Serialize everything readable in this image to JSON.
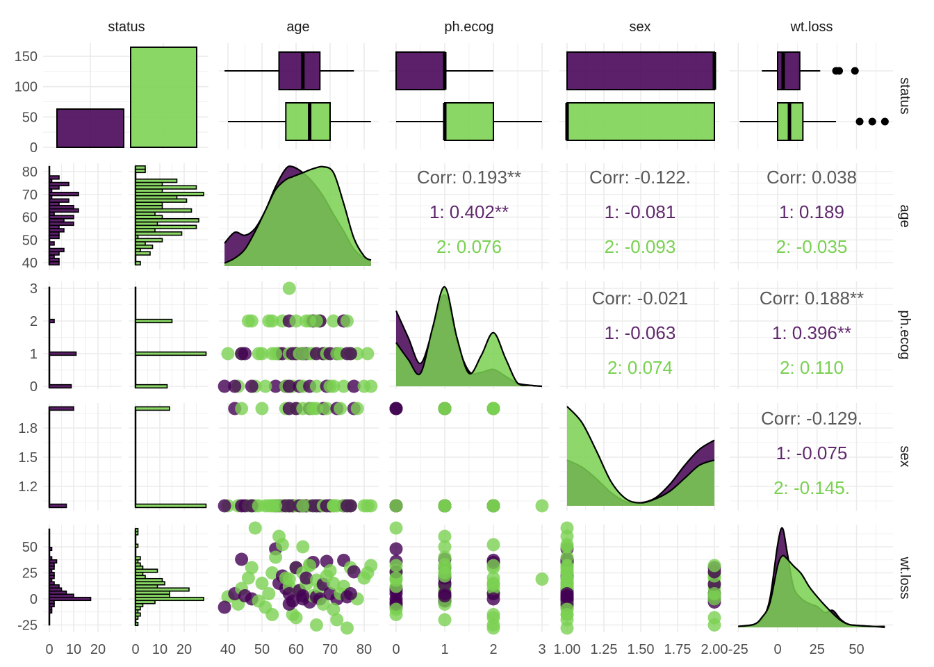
{
  "colors": {
    "group_1": "#440154",
    "group_2": "#7AD151",
    "corr_text": "#595959",
    "tick_text": "#4D4D4D",
    "grid": "#EBEBEB"
  },
  "strips": {
    "columns": [
      "status",
      "age",
      "ph.ecog",
      "sex",
      "wt.loss"
    ],
    "rows": [
      "status",
      "age",
      "ph.ecog",
      "sex",
      "wt.loss"
    ]
  },
  "chart_data": {
    "type": "pairs",
    "variables": [
      "status",
      "age",
      "ph.ecog",
      "sex",
      "wt.loss"
    ],
    "groups": [
      "1",
      "2"
    ],
    "grid": true,
    "axes": {
      "status_count": {
        "ticks": [
          0,
          50,
          100,
          150
        ],
        "labels": [
          "0",
          "50",
          "100",
          "150"
        ]
      },
      "hist_count": {
        "ticks": [
          0,
          10,
          20
        ],
        "labels": [
          "0",
          "10",
          "20"
        ]
      },
      "age": {
        "ticks": [
          40,
          50,
          60,
          70,
          80
        ],
        "labels": [
          "40",
          "50",
          "60",
          "70",
          "80"
        ]
      },
      "ph_ecog": {
        "ticks": [
          0,
          1,
          2,
          3
        ],
        "labels": [
          "0",
          "1",
          "2",
          "3"
        ]
      },
      "sex": {
        "ticks": [
          1,
          1.25,
          1.5,
          1.75,
          2
        ],
        "labels": [
          "1.00",
          "1.25",
          "1.50",
          "1.75",
          "2.00"
        ],
        "y_ticks": [
          1.2,
          1.5,
          1.8
        ],
        "y_labels": [
          "1.2",
          "1.5",
          "1.8"
        ]
      },
      "wt_loss": {
        "ticks": [
          -25,
          0,
          25,
          50
        ],
        "labels": [
          "-25",
          "0",
          "25",
          "50"
        ]
      }
    },
    "status_counts": {
      "1": 63,
      "2": 165
    },
    "boxplots": {
      "age": {
        "1": {
          "min": 39,
          "q1": 55,
          "median": 62,
          "q3": 67,
          "max": 77,
          "outliers": []
        },
        "2": {
          "min": 40,
          "q1": 57,
          "median": 64,
          "q3": 70,
          "max": 82,
          "outliers": []
        }
      },
      "ph_ecog": {
        "1": {
          "min": 0,
          "q1": 0,
          "median": 1,
          "q3": 1,
          "max": 2,
          "outliers": []
        },
        "2": {
          "min": 0,
          "q1": 1,
          "median": 1,
          "q3": 2,
          "max": 3,
          "outliers": []
        }
      },
      "sex": {
        "1": {
          "min": 1,
          "q1": 1,
          "median": 2,
          "q3": 2,
          "max": 2,
          "outliers": []
        },
        "2": {
          "min": 1,
          "q1": 1,
          "median": 1,
          "q3": 2,
          "max": 2,
          "outliers": []
        }
      },
      "wt_loss": {
        "1": {
          "min": -10,
          "q1": 0,
          "median": 3.5,
          "q3": 14,
          "max": 27,
          "outliers": [
            37,
            39,
            49
          ]
        },
        "2": {
          "min": -24,
          "q1": 0,
          "median": 7.5,
          "q3": 16,
          "max": 37,
          "outliers": [
            52,
            60,
            68
          ]
        }
      }
    },
    "histograms": {
      "age": {
        "bin_start": 39,
        "bin_width": 1.45,
        "counts": {
          "1": [
            4,
            4,
            2,
            4,
            6,
            0,
            2,
            0,
            4,
            4,
            6,
            4,
            10,
            6,
            10,
            2,
            12,
            10,
            4,
            8,
            1,
            12,
            1,
            4,
            8,
            1,
            4,
            0,
            0,
            0
          ],
          "2": [
            2,
            0,
            0,
            6,
            2,
            7,
            4,
            11,
            1,
            19,
            8,
            25,
            9,
            26,
            11,
            8,
            23,
            11,
            11,
            21,
            17,
            28,
            11,
            25,
            11,
            17,
            0,
            0,
            4,
            4
          ]
        }
      },
      "ph_ecog": {
        "centers": [
          0,
          1,
          2,
          3
        ],
        "bin_width": 0.1,
        "counts": {
          "1": [
            9,
            11,
            2,
            0
          ],
          "2": [
            13,
            29,
            15,
            0
          ]
        }
      },
      "sex": {
        "centers": [
          1,
          2
        ],
        "bin_width": 0.035,
        "counts": {
          "1": [
            7,
            10
          ],
          "2": [
            29,
            14
          ]
        }
      },
      "wt_loss": {
        "bin_start": -25.5,
        "bin_width": 3,
        "counts": {
          "1": [
            0,
            0,
            0,
            0,
            1,
            1,
            2,
            2,
            17,
            10,
            7,
            5,
            4,
            2,
            1,
            2,
            2,
            1,
            2,
            2,
            3,
            1,
            0,
            0,
            1,
            0,
            0,
            0,
            0,
            0,
            0
          ],
          "2": [
            1,
            0,
            1,
            2,
            1,
            2,
            3,
            8,
            28,
            14,
            14,
            22,
            9,
            12,
            11,
            4,
            3,
            9,
            3,
            2,
            1,
            2,
            0,
            0,
            0,
            1,
            0,
            0,
            0,
            1,
            1
          ]
        }
      }
    },
    "densities": {
      "age": {
        "x": [
          39,
          42,
          45,
          48,
          51,
          54,
          57,
          59,
          62,
          65,
          68,
          71,
          74,
          77,
          80,
          82
        ],
        "1": [
          0.23,
          0.34,
          0.31,
          0.38,
          0.56,
          0.8,
          0.98,
          1.0,
          0.94,
          0.84,
          0.7,
          0.52,
          0.35,
          0.17,
          0.08,
          0.06
        ],
        "2": [
          0.03,
          0.08,
          0.17,
          0.35,
          0.56,
          0.77,
          0.87,
          0.9,
          0.94,
          0.98,
          1.0,
          0.94,
          0.63,
          0.28,
          0.1,
          0.06
        ]
      },
      "ph_ecog": {
        "x": [
          0,
          0.25,
          0.5,
          0.75,
          1,
          1.25,
          1.5,
          1.75,
          2,
          2.25,
          2.5,
          2.75,
          3
        ],
        "1": [
          0.76,
          0.49,
          0.23,
          0.56,
          0.92,
          0.45,
          0.15,
          0.14,
          0.17,
          0.1,
          0.03,
          0.01,
          0
        ],
        "2": [
          0.44,
          0.27,
          0.13,
          0.59,
          1.0,
          0.49,
          0.13,
          0.31,
          0.54,
          0.28,
          0.03,
          0.01,
          0
        ]
      },
      "sex": {
        "x": [
          1,
          1.1,
          1.2,
          1.3,
          1.4,
          1.5,
          1.6,
          1.7,
          1.8,
          1.9,
          2
        ],
        "1": [
          0.46,
          0.39,
          0.27,
          0.13,
          0.04,
          0.03,
          0.08,
          0.22,
          0.41,
          0.57,
          0.66
        ],
        "2": [
          1.0,
          0.84,
          0.55,
          0.24,
          0.07,
          0.03,
          0.07,
          0.15,
          0.28,
          0.41,
          0.46
        ]
      },
      "wt_loss": {
        "x": [
          -25,
          -15,
          -10,
          -5,
          0,
          3,
          6,
          10,
          15,
          20,
          25,
          30,
          35,
          40,
          45,
          50,
          60,
          68
        ],
        "1": [
          0.01,
          0.03,
          0.08,
          0.28,
          0.83,
          1.0,
          0.76,
          0.41,
          0.29,
          0.24,
          0.21,
          0.15,
          0.17,
          0.08,
          0.03,
          0.02,
          0.01,
          0
        ],
        "2": [
          0.01,
          0.03,
          0.1,
          0.24,
          0.62,
          0.72,
          0.69,
          0.62,
          0.54,
          0.41,
          0.31,
          0.22,
          0.14,
          0.07,
          0.03,
          0.02,
          0.01,
          0.01
        ]
      }
    },
    "correlations": [
      {
        "row": "age",
        "col": "ph_ecog",
        "overall": "Corr: 0.193**",
        "g1": "1: 0.402**",
        "g2": "2: 0.076"
      },
      {
        "row": "age",
        "col": "sex",
        "overall": "Corr: -0.122.",
        "g1": "1: -0.081",
        "g2": "2: -0.093"
      },
      {
        "row": "age",
        "col": "wt_loss",
        "overall": "Corr: 0.038",
        "g1": "1: 0.189",
        "g2": "2: -0.035"
      },
      {
        "row": "ph_ecog",
        "col": "sex",
        "overall": "Corr: -0.021",
        "g1": "1: -0.063",
        "g2": "2: 0.074"
      },
      {
        "row": "ph_ecog",
        "col": "wt_loss",
        "overall": "Corr: 0.188**",
        "g1": "1: 0.396**",
        "g2": "2: 0.110"
      },
      {
        "row": "sex",
        "col": "wt_loss",
        "overall": "Corr: -0.129.",
        "g1": "1: -0.075",
        "g2": "2: -0.145."
      }
    ],
    "observation_fields": [
      "age",
      "ph.ecog",
      "sex",
      "wt.loss",
      "status"
    ],
    "observations": [
      [
        40,
        1,
        1,
        2,
        2
      ],
      [
        39,
        0,
        1,
        -8,
        1
      ],
      [
        43,
        0,
        1,
        -5,
        2
      ],
      [
        42,
        0,
        2,
        5,
        1
      ],
      [
        44,
        1,
        2,
        10,
        2
      ],
      [
        44,
        1,
        1,
        38,
        1
      ],
      [
        46,
        2,
        1,
        20,
        2
      ],
      [
        45,
        1,
        1,
        3,
        1
      ],
      [
        47,
        2,
        1,
        30,
        2
      ],
      [
        48,
        0,
        1,
        68,
        2
      ],
      [
        47,
        0,
        1,
        0,
        1
      ],
      [
        49,
        1,
        1,
        -2,
        2
      ],
      [
        50,
        1,
        2,
        15,
        2
      ],
      [
        54,
        0,
        1,
        48,
        1
      ],
      [
        51,
        0,
        1,
        -8,
        2
      ],
      [
        52,
        2,
        1,
        5,
        2
      ],
      [
        55,
        1,
        1,
        15,
        1
      ],
      [
        53,
        1,
        1,
        25,
        2
      ],
      [
        55,
        1,
        1,
        60,
        2
      ],
      [
        56,
        1,
        1,
        22,
        1
      ],
      [
        56,
        2,
        1,
        52,
        2
      ],
      [
        57,
        0,
        1,
        10,
        1
      ],
      [
        57,
        0,
        2,
        20,
        2
      ],
      [
        58,
        1,
        1,
        12,
        2
      ],
      [
        58,
        2,
        2,
        5,
        1
      ],
      [
        59,
        0,
        1,
        -15,
        2
      ],
      [
        59,
        1,
        1,
        -2,
        1
      ],
      [
        60,
        2,
        2,
        -18,
        2
      ],
      [
        60,
        1,
        1,
        30,
        2
      ],
      [
        60,
        1,
        2,
        30,
        1
      ],
      [
        61,
        1,
        1,
        8,
        2
      ],
      [
        61,
        0,
        1,
        8,
        1
      ],
      [
        62,
        0,
        2,
        25,
        2
      ],
      [
        62,
        1,
        1,
        0,
        1
      ],
      [
        63,
        2,
        1,
        14,
        2
      ],
      [
        63,
        1,
        1,
        20,
        1
      ],
      [
        64,
        1,
        1,
        33,
        2
      ],
      [
        64,
        0,
        2,
        -3,
        1
      ],
      [
        65,
        1,
        2,
        3,
        2
      ],
      [
        65,
        2,
        1,
        35,
        1
      ],
      [
        66,
        0,
        1,
        18,
        2
      ],
      [
        66,
        1,
        1,
        2,
        1
      ],
      [
        67,
        2,
        1,
        10,
        2
      ],
      [
        67,
        2,
        1,
        0,
        1
      ],
      [
        68,
        1,
        1,
        -5,
        2
      ],
      [
        68,
        1,
        2,
        14,
        1
      ],
      [
        69,
        1,
        2,
        22,
        2
      ],
      [
        69,
        0,
        1,
        36,
        1
      ],
      [
        70,
        0,
        1,
        27,
        2
      ],
      [
        70,
        1,
        1,
        5,
        1
      ],
      [
        71,
        2,
        1,
        15,
        2
      ],
      [
        72,
        1,
        2,
        0,
        1
      ],
      [
        72,
        1,
        1,
        -20,
        2
      ],
      [
        73,
        1,
        2,
        5,
        2
      ],
      [
        74,
        2,
        1,
        37,
        1
      ],
      [
        74,
        0,
        1,
        12,
        2
      ],
      [
        75,
        2,
        1,
        -28,
        2
      ],
      [
        75,
        1,
        1,
        2,
        1
      ],
      [
        76,
        1,
        1,
        30,
        2
      ],
      [
        77,
        0,
        2,
        26,
        1
      ],
      [
        78,
        1,
        2,
        0,
        2
      ],
      [
        76,
        1,
        1,
        5,
        1
      ],
      [
        80,
        0,
        1,
        20,
        2
      ],
      [
        81,
        1,
        1,
        25,
        2
      ],
      [
        62,
        1,
        1,
        3,
        1
      ],
      [
        82,
        0,
        1,
        32,
        2
      ],
      [
        58,
        3,
        1,
        19,
        2
      ],
      [
        58,
        0,
        1,
        -5,
        1
      ],
      [
        66,
        2,
        2,
        -25,
        2
      ],
      [
        54,
        1,
        1,
        40,
        2
      ],
      [
        62,
        1,
        1,
        50,
        2
      ],
      [
        71,
        0,
        1,
        -10,
        2
      ],
      [
        53,
        2,
        1,
        -15,
        2
      ],
      [
        64,
        2,
        2,
        32,
        2
      ]
    ]
  }
}
